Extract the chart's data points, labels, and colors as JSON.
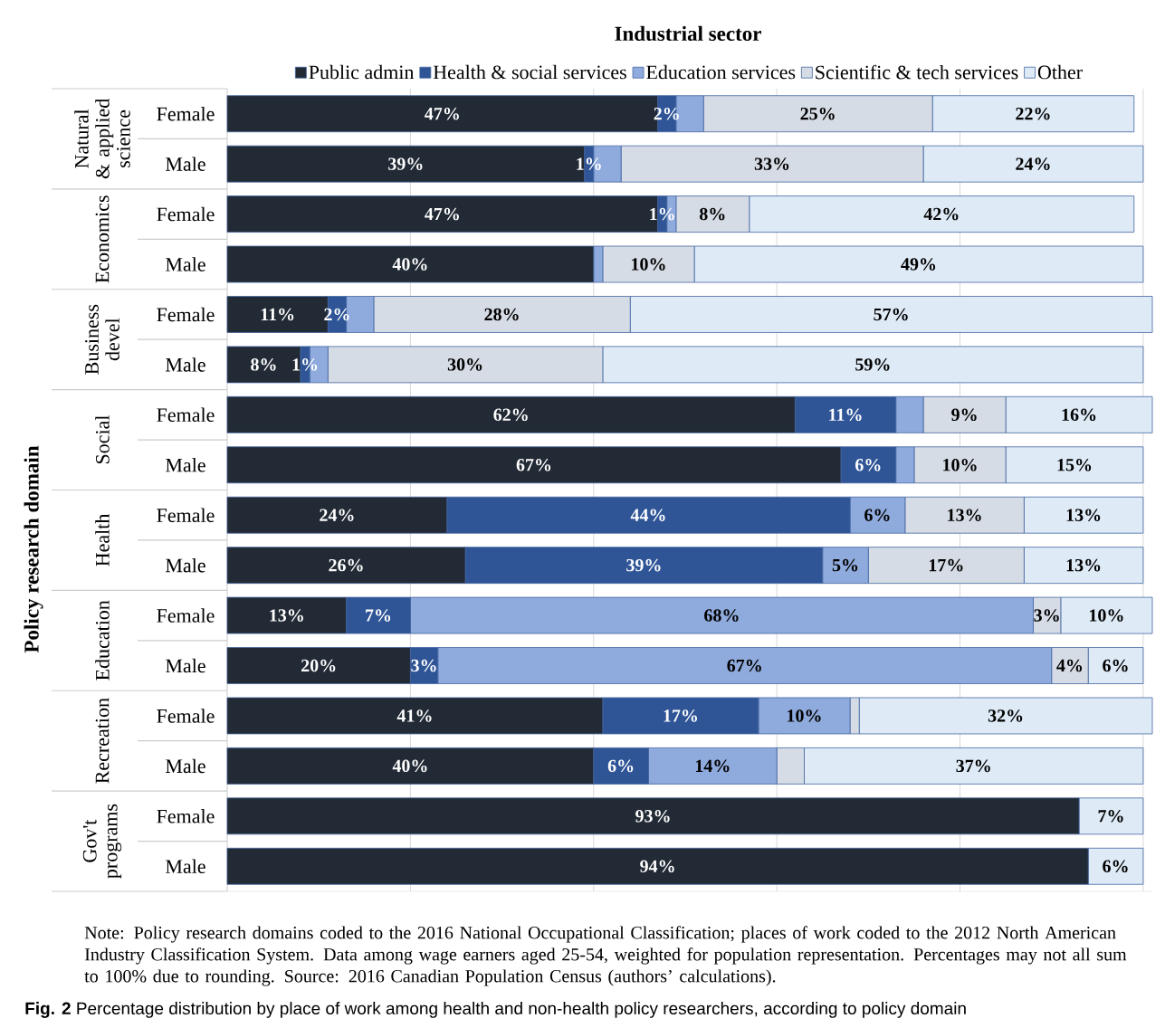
{
  "chart_data": {
    "type": "bar",
    "orientation": "horizontal",
    "stacked": true,
    "title": "Industrial sector",
    "categories": [
      "Female",
      "Male",
      "Female",
      "Male",
      "Female",
      "Male",
      "Female",
      "Male",
      "Female",
      "Male",
      "Female",
      "Male",
      "Female",
      "Male",
      "Female",
      "Male"
    ],
    "series": [
      {
        "name": "Public admin",
        "color": "#222a35",
        "values": [
          47,
          39,
          47,
          40,
          11,
          8,
          62,
          67,
          24,
          26,
          13,
          20,
          41,
          40,
          93,
          94
        ],
        "value_labels": [
          "47%",
          "39%",
          "47%",
          "40%",
          "11%",
          "8%",
          "62%",
          "67%",
          "24%",
          "26%",
          "13%",
          "20%",
          "41%",
          "40%",
          "93%",
          "94%"
        ]
      },
      {
        "name": "Health & social services",
        "color": "#2f5597",
        "values": [
          2,
          1,
          1,
          0,
          2,
          1,
          11,
          6,
          44,
          39,
          7,
          3,
          17,
          6,
          0,
          0
        ],
        "value_labels": [
          "2%",
          "1%",
          "1%",
          null,
          "2%",
          "1%",
          "11%",
          "6%",
          "44%",
          "39%",
          "7%",
          "3%",
          "17%",
          "6%",
          null,
          null
        ]
      },
      {
        "name": "Education services",
        "color": "#8faadc",
        "values": [
          3,
          3,
          1,
          1,
          3,
          2,
          3,
          2,
          6,
          5,
          68,
          67,
          10,
          14,
          0,
          0
        ],
        "value_labels": [
          null,
          null,
          null,
          null,
          null,
          null,
          null,
          null,
          "6%",
          "5%",
          "68%",
          "67%",
          "10%",
          "14%",
          null,
          null
        ]
      },
      {
        "name": "Scientific & tech services",
        "color": "#d6dce5",
        "values": [
          25,
          33,
          8,
          10,
          28,
          30,
          9,
          10,
          13,
          17,
          3,
          4,
          1,
          3,
          0,
          0
        ],
        "value_labels": [
          "25%",
          "33%",
          "8%",
          "10%",
          "28%",
          "30%",
          "9%",
          "10%",
          "13%",
          "17%",
          "3%",
          "4%",
          null,
          null,
          null,
          null
        ]
      },
      {
        "name": "Other",
        "color": "#deebf7",
        "values": [
          22,
          24,
          42,
          49,
          57,
          59,
          16,
          15,
          13,
          13,
          10,
          6,
          32,
          37,
          7,
          6
        ],
        "value_labels": [
          "22%",
          "24%",
          "42%",
          "49%",
          "57%",
          "59%",
          "16%",
          "15%",
          "13%",
          "13%",
          "10%",
          "6%",
          "32%",
          "37%",
          "7%",
          "6%"
        ]
      }
    ],
    "xlim": [
      0,
      101
    ],
    "xticks": [
      {
        "value": 0,
        "label": null
      },
      {
        "value": 20,
        "label": null
      },
      {
        "value": 40,
        "label": null
      },
      {
        "value": 60,
        "label": null
      },
      {
        "value": 80,
        "label": null
      },
      {
        "value": 100,
        "label": null
      }
    ],
    "grid": "x",
    "legend": "top",
    "tick_labels": "y",
    "annotations": [
      "Natural & applied science",
      "Economics",
      "Business devel",
      "Social",
      "Health",
      "Education",
      "Recreation",
      "Gov't programs",
      "Note: Policy research domains coded to the 2016 National Occupational Classification; places of work coded to the 2012 North American Industry Classification System. Data among wage earners aged 25-54, weighted for population representation. Percentages may not all sum to 100% due to rounding.  Source: 2016 Canadian Population Census (authors’ calculations).",
      "**Fig. 2**  Percentage distribution by place of work among health and non-health policy researchers, according to policy domain",
      "Policy research domain"
    ]
  }
}
